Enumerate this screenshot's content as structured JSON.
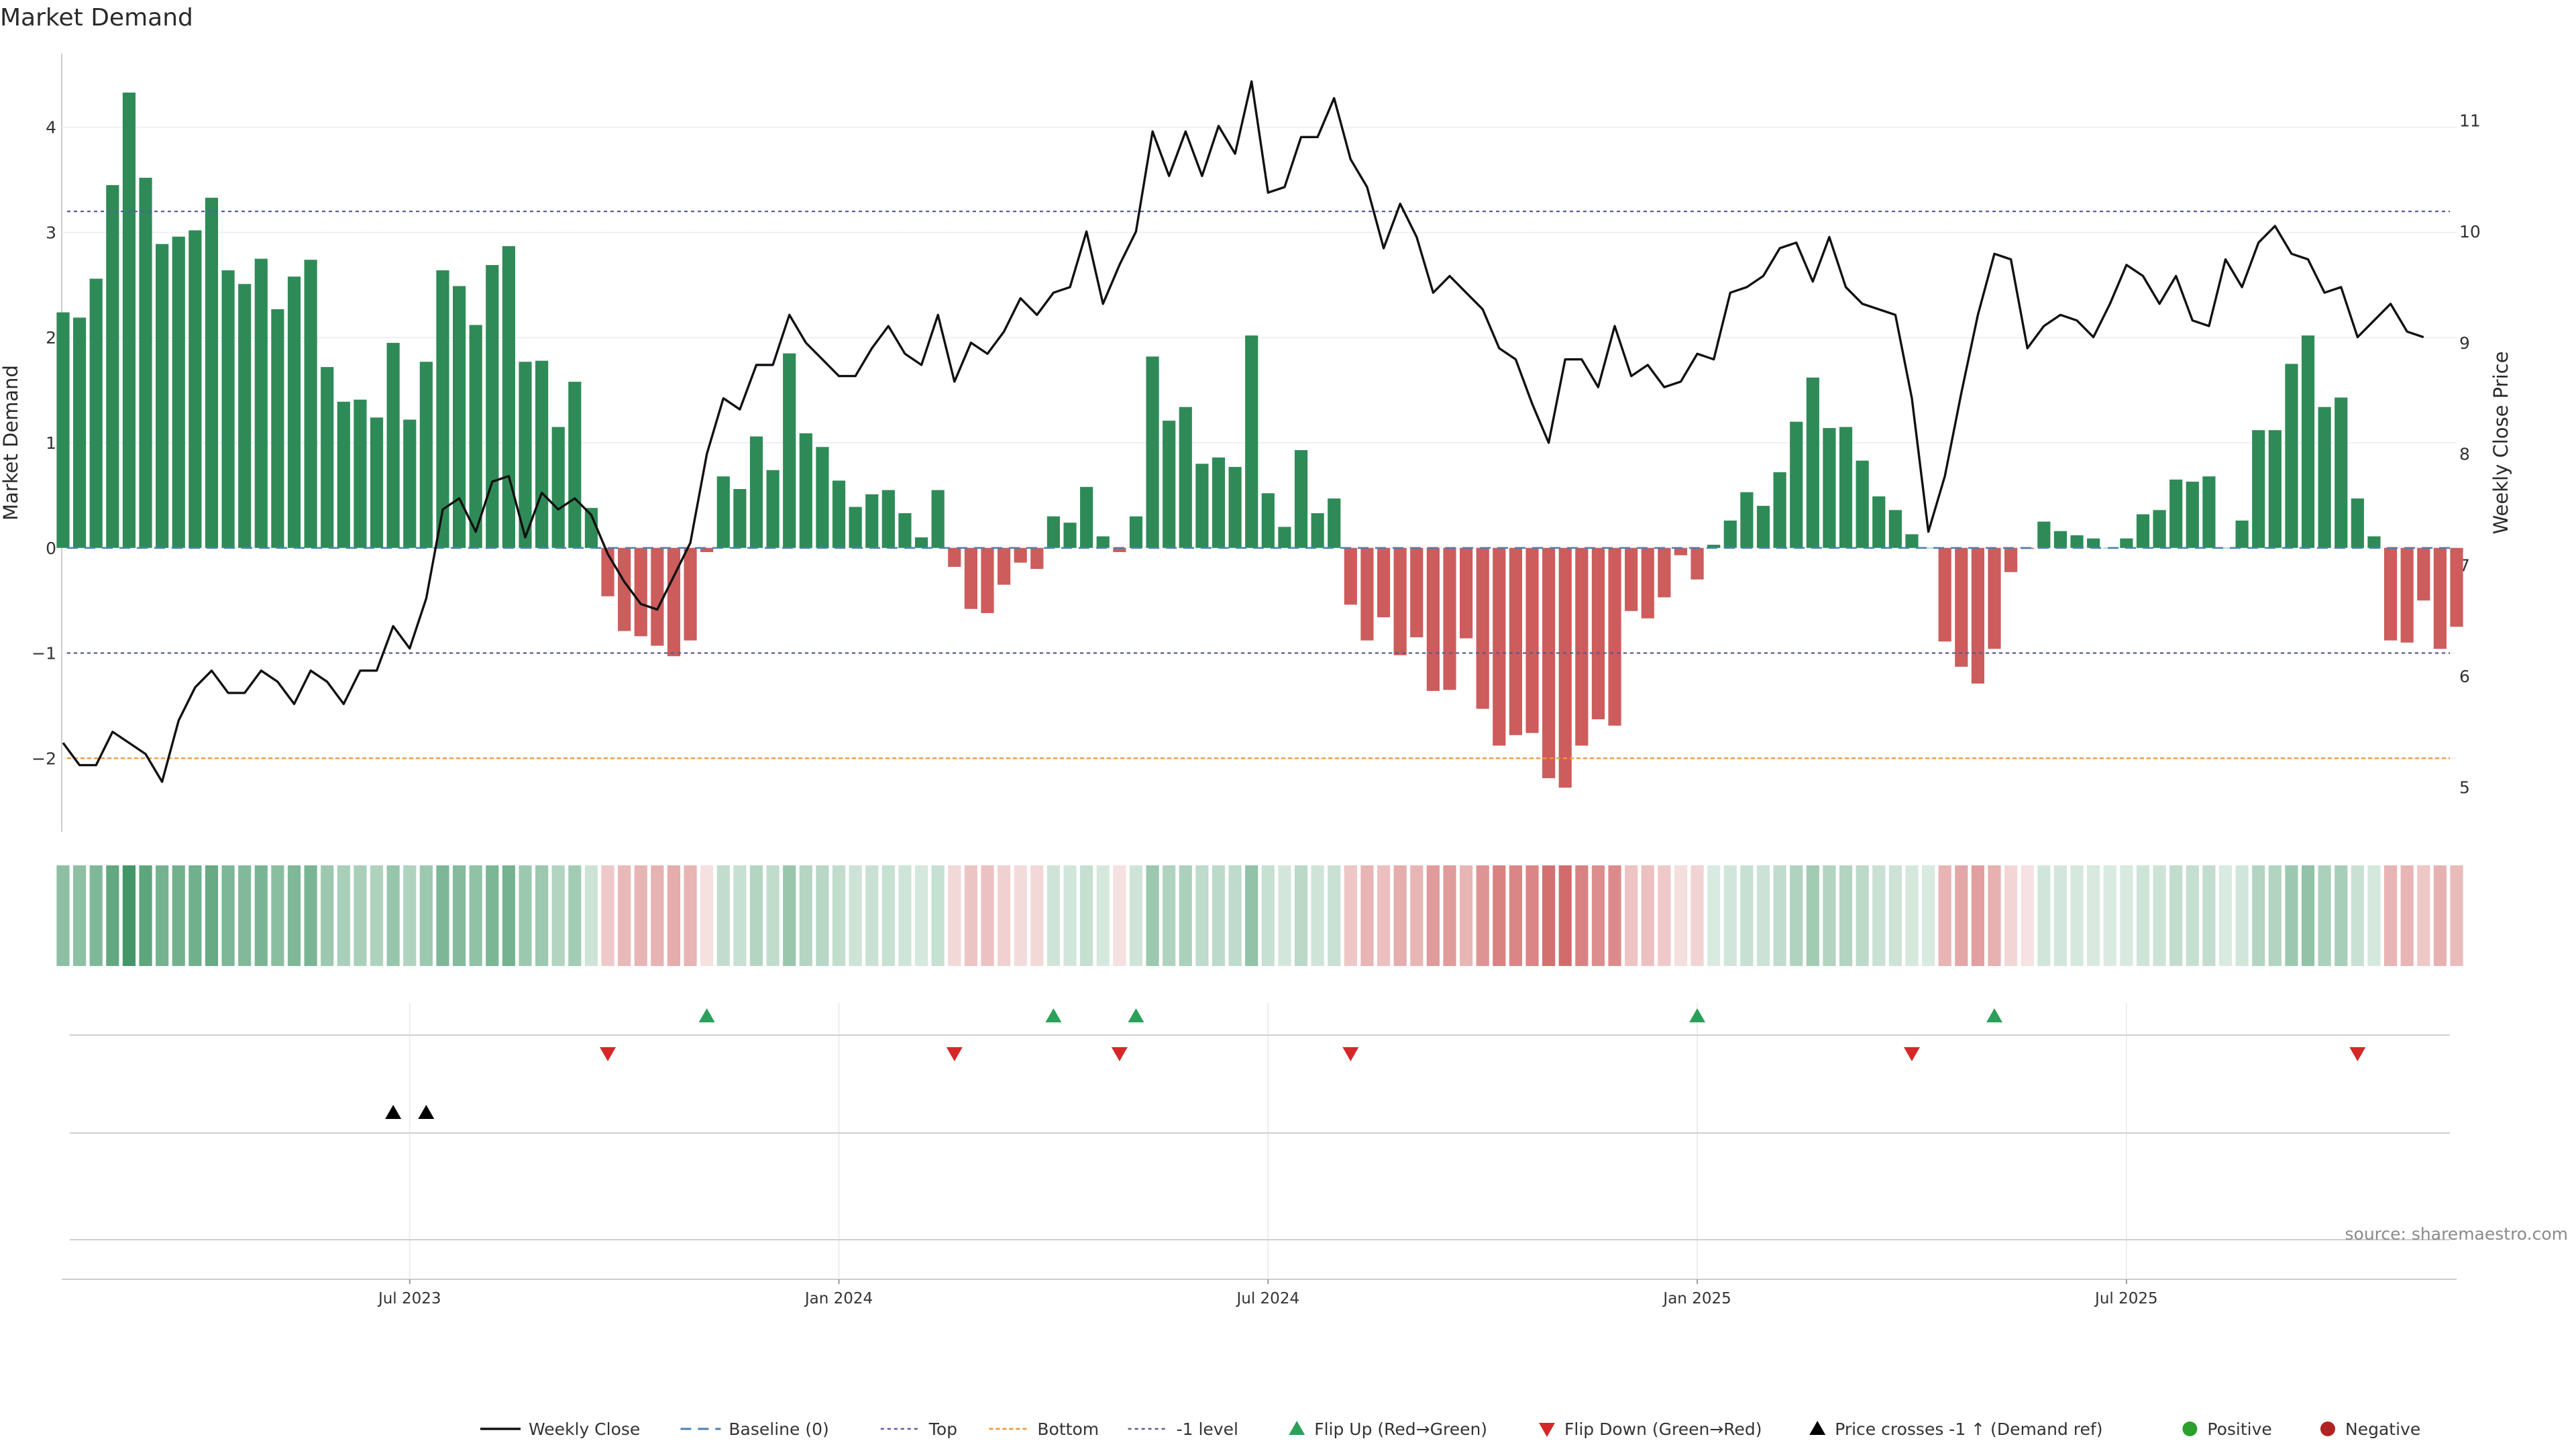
{
  "title": "Market Demand",
  "source": "source: sharemaestro.com",
  "colors": {
    "positive": "#2e8b57",
    "negative": "#cd5c5c",
    "price": "#111111",
    "baseline": "#4682b4",
    "top": "#5a5aa8",
    "bottom": "#ef9a3c",
    "minus_one": "#5a5a8a",
    "flip_up": "#2ca05a",
    "flip_down": "#d62728",
    "price_cross": "#000000",
    "positive_dot": "#2ca02c",
    "negative_dot": "#b22222"
  },
  "chart_data": {
    "type": "bar+line",
    "ylabel_left": "Market Demand",
    "ylabel_right": "Weekly Close Price",
    "ylim_left": [
      -2.7,
      4.7
    ],
    "ylim_right": [
      4.6,
      11.6
    ],
    "yticks_left": [
      4,
      3,
      2,
      1,
      0,
      -1,
      -2
    ],
    "yticks_left_labels": [
      "4",
      "3",
      "2",
      "1",
      "0",
      "−1",
      "−2"
    ],
    "yticks_right": [
      11,
      10,
      9,
      8,
      7,
      6,
      5
    ],
    "yticks_right_labels": [
      "11",
      "10",
      "9",
      "8",
      "7",
      "6",
      "5"
    ],
    "reference_lines": {
      "top": 3.2,
      "bottom": -2.0,
      "minus_one": -1.0,
      "baseline": 0
    },
    "x_ticks": [
      {
        "index": 21,
        "label": "Jul 2023"
      },
      {
        "index": 47,
        "label": "Jan 2024"
      },
      {
        "index": 73,
        "label": "Jul 2024"
      },
      {
        "index": 99,
        "label": "Jan 2025"
      },
      {
        "index": 125,
        "label": "Jul 2025"
      }
    ],
    "demand": [
      2.24,
      2.19,
      2.56,
      3.45,
      4.33,
      3.52,
      2.89,
      2.96,
      3.02,
      3.33,
      2.64,
      2.51,
      2.75,
      2.27,
      2.58,
      2.74,
      1.72,
      1.39,
      1.41,
      1.24,
      1.95,
      1.22,
      1.77,
      2.64,
      2.49,
      2.12,
      2.69,
      2.87,
      1.77,
      1.78,
      1.15,
      1.58,
      0.38,
      -0.46,
      -0.79,
      -0.84,
      -0.93,
      -1.03,
      -0.88,
      -0.04,
      0.68,
      0.56,
      1.06,
      0.74,
      1.85,
      1.09,
      0.96,
      0.64,
      0.39,
      0.51,
      0.55,
      0.33,
      0.1,
      0.55,
      -0.18,
      -0.58,
      -0.62,
      -0.35,
      -0.14,
      -0.2,
      0.3,
      0.24,
      0.58,
      0.11,
      -0.04,
      0.3,
      1.82,
      1.21,
      1.34,
      0.8,
      0.86,
      0.77,
      2.02,
      0.52,
      0.2,
      0.93,
      0.33,
      0.47,
      -0.54,
      -0.88,
      -0.66,
      -1.02,
      -0.85,
      -1.36,
      -1.35,
      -0.86,
      -1.53,
      -1.88,
      -1.78,
      -1.76,
      -2.19,
      -2.28,
      -1.88,
      -1.63,
      -1.69,
      -0.6,
      -0.67,
      -0.47,
      -0.07,
      -0.3,
      0.03,
      0.26,
      0.53,
      0.4,
      0.72,
      1.2,
      1.62,
      1.14,
      1.15,
      0.83,
      0.49,
      0.36,
      0.13,
      0.0,
      -0.89,
      -1.13,
      -1.29,
      -0.96,
      -0.23,
      -0.01,
      0.25,
      0.16,
      0.12,
      0.09,
      0.0,
      0.09,
      0.32,
      0.36,
      0.65,
      0.63,
      0.68,
      0.0,
      0.26,
      1.12,
      1.12,
      1.75,
      2.02,
      1.34,
      1.43,
      0.47,
      0.11,
      -0.88,
      -0.9,
      -0.5,
      -0.96,
      -0.75
    ],
    "weekly_close": [
      5.4,
      5.2,
      5.2,
      5.5,
      5.4,
      5.3,
      5.05,
      5.6,
      5.9,
      6.05,
      5.85,
      5.85,
      6.05,
      5.95,
      5.75,
      6.05,
      5.95,
      5.75,
      6.05,
      6.05,
      6.45,
      6.25,
      6.7,
      7.5,
      7.6,
      7.3,
      7.75,
      7.8,
      7.25,
      7.65,
      7.5,
      7.6,
      7.45,
      7.1,
      6.85,
      6.65,
      6.6,
      6.9,
      7.2,
      8.0,
      8.5,
      8.4,
      8.8,
      8.8,
      9.25,
      9.0,
      8.85,
      8.7,
      8.7,
      8.95,
      9.15,
      8.9,
      8.8,
      9.25,
      8.65,
      9.0,
      8.9,
      9.1,
      9.4,
      9.25,
      9.45,
      9.5,
      10.0,
      9.35,
      9.7,
      10.0,
      10.9,
      10.5,
      10.9,
      10.5,
      10.95,
      10.7,
      11.35,
      10.35,
      10.4,
      10.85,
      10.85,
      11.2,
      10.65,
      10.4,
      9.85,
      10.25,
      9.95,
      9.45,
      9.6,
      9.45,
      9.3,
      8.95,
      8.85,
      8.45,
      8.1,
      8.85,
      8.85,
      8.6,
      9.15,
      8.7,
      8.8,
      8.6,
      8.65,
      8.9,
      8.85,
      9.45,
      9.5,
      9.6,
      9.85,
      9.9,
      9.55,
      9.95,
      9.5,
      9.35,
      9.3,
      9.25,
      8.5,
      7.3,
      7.8,
      8.55,
      9.25,
      9.8,
      9.75,
      8.95,
      9.15,
      9.25,
      9.2,
      9.05,
      9.35,
      9.7,
      9.6,
      9.35,
      9.6,
      9.2,
      9.15,
      9.75,
      9.5,
      9.9,
      10.05,
      9.8,
      9.75,
      9.45,
      9.5,
      9.05,
      9.2,
      9.35,
      9.1,
      9.05
    ],
    "flip_up_indices": [
      39,
      60,
      65,
      99,
      117
    ],
    "flip_down_indices": [
      33,
      54,
      64,
      78,
      112,
      139
    ],
    "price_cross_indices": [
      20,
      22
    ]
  },
  "legend": [
    {
      "key": "weekly_close",
      "label": "Weekly Close"
    },
    {
      "key": "baseline",
      "label": "Baseline (0)"
    },
    {
      "key": "top",
      "label": "Top"
    },
    {
      "key": "bottom",
      "label": "Bottom"
    },
    {
      "key": "minus_one",
      "label": "-1 level"
    },
    {
      "key": "flip_up",
      "label": "Flip Up (Red→Green)"
    },
    {
      "key": "flip_down",
      "label": "Flip Down (Green→Red)"
    },
    {
      "key": "price_cross",
      "label": "Price crosses -1 ↑ (Demand ref)"
    },
    {
      "key": "positive",
      "label": "Positive"
    },
    {
      "key": "negative",
      "label": "Negative"
    }
  ]
}
